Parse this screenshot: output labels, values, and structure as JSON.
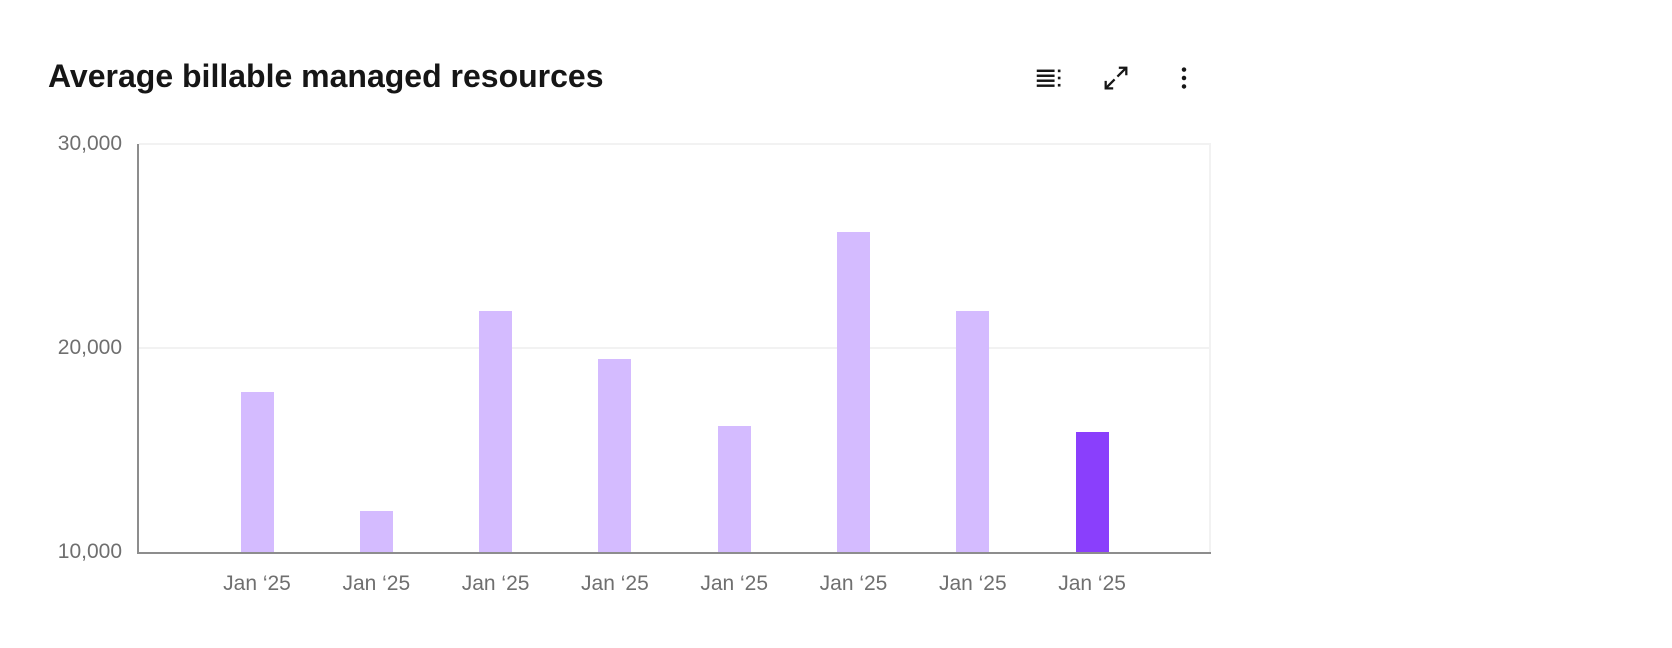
{
  "header": {
    "title": "Average billable managed resources",
    "toolbar": [
      {
        "name": "show-data-table",
        "icon": "data-table-icon"
      },
      {
        "name": "expand",
        "icon": "expand-icon"
      },
      {
        "name": "options",
        "icon": "kebab-menu-icon"
      }
    ]
  },
  "chart_data": {
    "type": "bar",
    "title": "Average billable managed resources",
    "categories": [
      "Jan ‘25",
      "Jan ‘25",
      "Jan ‘25",
      "Jan ‘25",
      "Jan ‘25",
      "Jan ‘25",
      "Jan ‘25",
      "Jan ‘25"
    ],
    "values": [
      17850,
      12000,
      21800,
      19450,
      16200,
      25700,
      21800,
      15900
    ],
    "highlighted_index": 7,
    "xlabel": "",
    "ylabel": "",
    "ylim": [
      10000,
      30000
    ],
    "y_ticks": [
      {
        "label": "30,000",
        "value": 30000
      },
      {
        "label": "20,000",
        "value": 20000
      },
      {
        "label": "10,000",
        "value": 10000
      }
    ],
    "grid": "horizontal",
    "legend": "none",
    "colors": {
      "bar": "#d4bbff",
      "bar_highlighted": "#8a3ffc",
      "axis_line": "#8d8d8d",
      "gridline": "#f2f2f2",
      "tick_label": "#6f6f6f",
      "title": "#161616",
      "icon": "#161616",
      "background": "#ffffff"
    }
  }
}
